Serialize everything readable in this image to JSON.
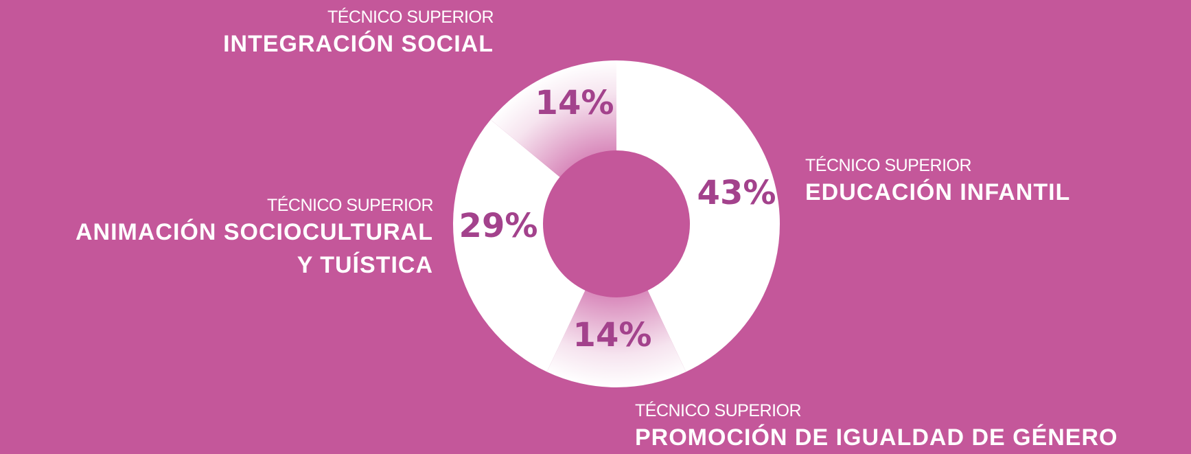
{
  "chart_data": {
    "type": "donut",
    "categories": [
      "EDUCACIÓN INFANTIL",
      "PROMOCIÓN DE IGUALDAD DE GÉNERO",
      "ANIMACIÓN SOCIOCULTURAL\nY TUÍSTICA",
      "INTEGRACIÓN SOCIAL"
    ],
    "category_prefixes": [
      "TÉCNICO SUPERIOR",
      "TÉCNICO SUPERIOR",
      "TÉCNICO SUPERIOR",
      "TÉCNICO SUPERIOR"
    ],
    "values": [
      43,
      14,
      29,
      14
    ],
    "value_labels": [
      "43%",
      "14%",
      "29%",
      "14%"
    ],
    "colors": [
      "#ffffff",
      "gradient",
      "#ffffff",
      "gradient"
    ],
    "background": "#c4579a",
    "label_color": "#a3428c"
  }
}
